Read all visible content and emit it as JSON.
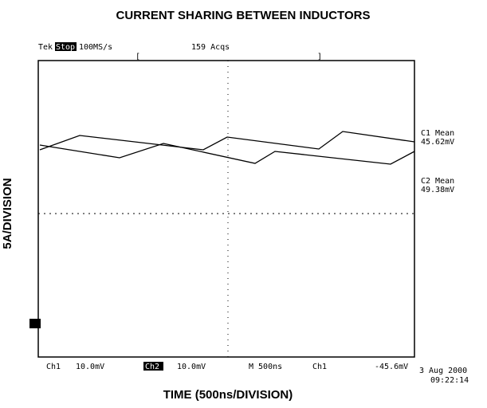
{
  "title": "CURRENT SHARING BETWEEN INDUCTORS",
  "y_label": "5A/DIVISION",
  "x_label": "TIME (500ns/DIVISION)",
  "header": {
    "brand": "Tek",
    "state": "Stop",
    "rate": "100MS/s",
    "acqs": "159 Acqs"
  },
  "readouts": [
    {
      "name": "C1 Mean",
      "value": "45.62mV"
    },
    {
      "name": "C2 Mean",
      "value": "49.38mV"
    }
  ],
  "footer": {
    "ch1": "Ch1",
    "ch1_scale": "10.0mV",
    "ch2": "Ch2",
    "ch2_scale": "10.0mV",
    "time": "M 500ns",
    "trigger_ch": "Ch1",
    "trigger_level": "-45.6mV",
    "date": "3 Aug 2000",
    "clock": "09:22:14"
  }
}
